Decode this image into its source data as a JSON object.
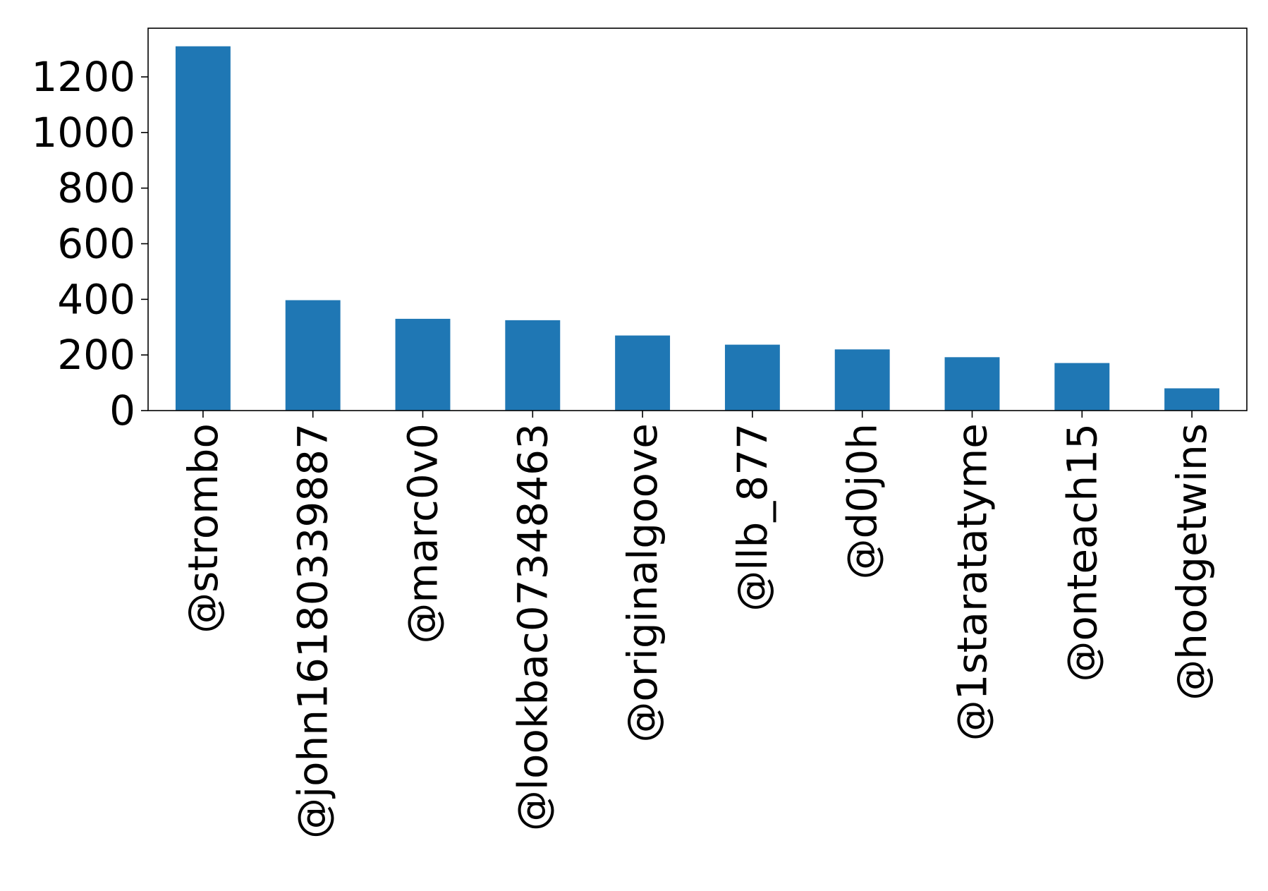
{
  "chart_data": {
    "type": "bar",
    "title": "",
    "xlabel": "",
    "ylabel": "",
    "categories": [
      "@strombo",
      "@john16180339887",
      "@marc0v0",
      "@lookbac07348463",
      "@originalgoove",
      "@llb_877",
      "@d0j0h",
      "@1staratatyme",
      "@onteach15",
      "@hodgetwins"
    ],
    "values": [
      1310,
      397,
      330,
      325,
      270,
      237,
      220,
      192,
      171,
      80
    ],
    "ylim": [
      0,
      1375
    ],
    "yticks": [
      0,
      200,
      400,
      600,
      800,
      1000,
      1200
    ],
    "bar_color": "#1f77b4",
    "grid": false,
    "legend": "none"
  }
}
